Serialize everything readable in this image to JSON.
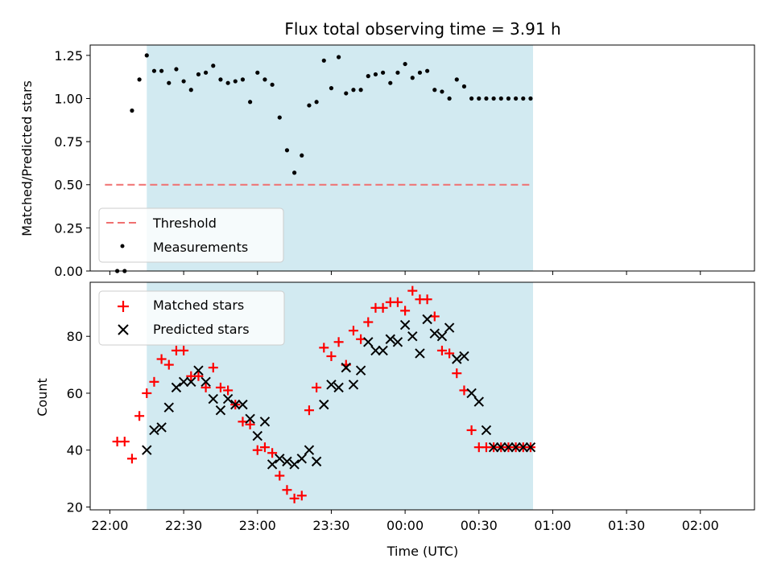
{
  "chart_data": [
    {
      "type": "scatter",
      "title": "Flux total observing time = 3.91 h",
      "ylabel": "Matched/Predicted stars",
      "xlabel": "",
      "ylim": [
        0,
        1.31
      ],
      "yticks": [
        "0.00",
        "0.25",
        "0.50",
        "0.75",
        "1.00",
        "1.25"
      ],
      "ytick_values": [
        0,
        0.25,
        0.5,
        0.75,
        1.0,
        1.25
      ],
      "x_unit": "minutes since 22:00 UTC",
      "shaded_region": [
        15,
        172
      ],
      "threshold": {
        "name": "Threshold",
        "value": 0.5,
        "x_range": [
          -2,
          172
        ],
        "color": "#f07070"
      },
      "series": [
        {
          "name": "Measurements",
          "marker": "dot",
          "color": "#000000",
          "x": [
            3,
            6,
            9,
            12,
            15,
            18,
            21,
            24,
            27,
            30,
            33,
            36,
            39,
            42,
            45,
            48,
            51,
            54,
            57,
            60,
            63,
            66,
            69,
            72,
            75,
            78,
            81,
            84,
            87,
            90,
            93,
            96,
            99,
            102,
            105,
            108,
            111,
            114,
            117,
            120,
            123,
            126,
            129,
            132,
            135,
            138,
            141,
            144,
            147,
            150,
            153,
            156,
            159,
            162,
            165,
            168,
            171
          ],
          "y": [
            0,
            0,
            0.93,
            1.11,
            1.25,
            1.16,
            1.16,
            1.09,
            1.17,
            1.1,
            1.05,
            1.14,
            1.15,
            1.19,
            1.11,
            1.09,
            1.1,
            1.11,
            0.98,
            1.15,
            1.11,
            1.08,
            0.89,
            0.7,
            0.57,
            0.67,
            0.96,
            0.98,
            1.22,
            1.06,
            1.24,
            1.03,
            1.05,
            1.05,
            1.13,
            1.14,
            1.15,
            1.09,
            1.15,
            1.2,
            1.12,
            1.15,
            1.16,
            1.05,
            1.04,
            1.0,
            1.11,
            1.07,
            1.0,
            1.0,
            1.0,
            1.0,
            1.0,
            1.0,
            1.0,
            1.0,
            1.0
          ]
        }
      ],
      "legend": {
        "placement": "lower-left",
        "entries": [
          "Threshold",
          "Measurements"
        ]
      }
    },
    {
      "type": "scatter",
      "xlabel": "Time (UTC)",
      "ylabel": "Count",
      "ylim": [
        19,
        99
      ],
      "yticks": [
        "20",
        "40",
        "60",
        "80"
      ],
      "ytick_values": [
        20,
        40,
        60,
        80
      ],
      "xticks": [
        "22:00",
        "22:30",
        "23:00",
        "23:30",
        "00:00",
        "00:30",
        "01:00",
        "01:30",
        "02:00"
      ],
      "xtick_values": [
        0,
        30,
        60,
        90,
        120,
        150,
        180,
        210,
        240
      ],
      "x_unit": "minutes since 22:00 UTC",
      "xlim": [
        -8,
        262
      ],
      "shaded_region": [
        15,
        172
      ],
      "series": [
        {
          "name": "Matched stars",
          "marker": "plus",
          "color": "#ff0000",
          "x": [
            3,
            6,
            9,
            12,
            15,
            18,
            21,
            24,
            27,
            30,
            33,
            36,
            39,
            42,
            45,
            48,
            51,
            54,
            57,
            60,
            63,
            66,
            69,
            72,
            75,
            78,
            81,
            84,
            87,
            90,
            93,
            96,
            99,
            102,
            105,
            108,
            111,
            114,
            117,
            120,
            123,
            126,
            129,
            132,
            135,
            138,
            141,
            144,
            147,
            150,
            153,
            156,
            159,
            162,
            165,
            168,
            171
          ],
          "y": [
            43,
            43,
            37,
            52,
            60,
            64,
            72,
            70,
            75,
            75,
            66,
            66,
            62,
            69,
            62,
            61,
            56,
            50,
            49,
            40,
            41,
            39,
            31,
            26,
            23,
            24,
            54,
            62,
            76,
            73,
            78,
            70,
            82,
            79,
            85,
            90,
            90,
            92,
            92,
            89,
            96,
            93,
            93,
            87,
            75,
            74,
            67,
            61,
            47,
            41,
            41,
            41,
            41,
            41,
            41,
            41,
            41
          ]
        },
        {
          "name": "Predicted stars",
          "marker": "x",
          "color": "#000000",
          "x": [
            15,
            18,
            21,
            24,
            27,
            30,
            33,
            36,
            39,
            42,
            45,
            48,
            51,
            54,
            57,
            60,
            63,
            66,
            69,
            72,
            75,
            78,
            81,
            84,
            87,
            90,
            93,
            96,
            99,
            102,
            105,
            108,
            111,
            114,
            117,
            120,
            123,
            126,
            129,
            132,
            135,
            138,
            141,
            144,
            147,
            150,
            153,
            156,
            159,
            162,
            165,
            168,
            171
          ],
          "y": [
            40,
            47,
            48,
            55,
            62,
            64,
            64,
            68,
            64,
            58,
            54,
            58,
            56,
            56,
            51,
            45,
            50,
            35,
            37,
            36,
            35,
            37,
            40,
            36,
            56,
            63,
            62,
            69,
            63,
            68,
            78,
            75,
            75,
            79,
            78,
            84,
            80,
            74,
            86,
            81,
            80,
            83,
            72,
            73,
            60,
            57,
            47,
            41,
            41,
            41,
            41,
            41,
            41
          ]
        }
      ],
      "legend": {
        "placement": "upper-left",
        "entries": [
          "Matched stars",
          "Predicted stars"
        ]
      }
    }
  ]
}
